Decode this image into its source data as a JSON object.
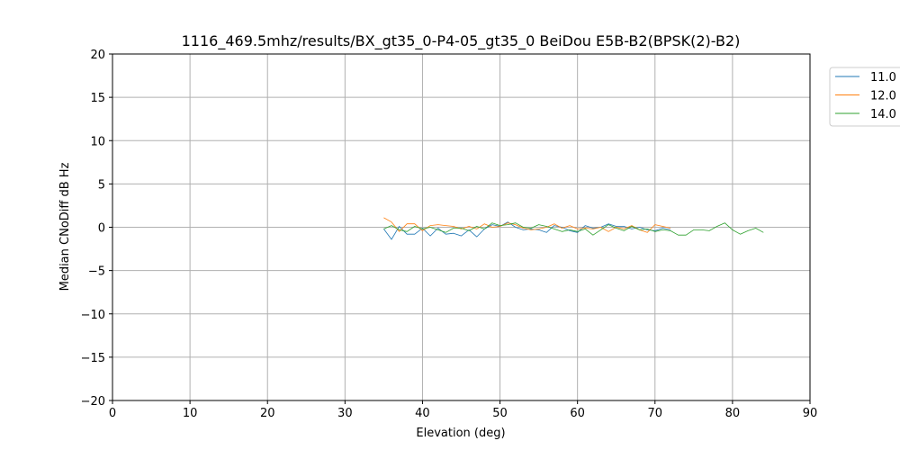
{
  "chart_data": {
    "type": "line",
    "title": "1116_469.5mhz/results/BX_gt35_0-P4-05_gt35_0 BeiDou E5B-B2(BPSK(2)-B2)",
    "xlabel": "Elevation (deg)",
    "ylabel": "Median CNoDiff dB Hz",
    "xlim": [
      0,
      90
    ],
    "ylim": [
      -20,
      20
    ],
    "xticks": [
      0,
      10,
      20,
      30,
      40,
      50,
      60,
      70,
      80,
      90
    ],
    "yticks": [
      -20,
      -15,
      -10,
      -5,
      0,
      5,
      10,
      15,
      20
    ],
    "grid": true,
    "legend_position": "outside-top-right",
    "series": [
      {
        "name": "11.0",
        "color": "#1f77b4",
        "x": [
          35,
          36,
          37,
          38,
          39,
          40,
          41,
          42,
          43,
          44,
          45,
          46,
          47,
          48,
          49,
          50,
          51,
          52,
          53,
          54,
          55,
          56,
          57,
          58,
          59,
          60,
          61,
          62,
          63,
          64,
          65,
          66,
          67,
          68,
          69,
          70,
          71,
          72
        ],
        "y": [
          -0.2,
          -1.4,
          0.1,
          -0.8,
          -0.8,
          -0.1,
          -1.0,
          -0.1,
          -0.8,
          -0.7,
          -1.0,
          -0.3,
          -1.1,
          -0.2,
          0.3,
          0.1,
          0.6,
          0.0,
          -0.3,
          -0.2,
          -0.3,
          -0.6,
          0.2,
          0.0,
          -0.4,
          -0.6,
          0.2,
          -0.1,
          0.0,
          0.4,
          0.1,
          0.1,
          -0.2,
          0.0,
          -0.3,
          -0.4,
          -0.1,
          -0.3
        ]
      },
      {
        "name": "12.0",
        "color": "#ff7f0e",
        "x": [
          35,
          36,
          37,
          38,
          39,
          40,
          41,
          42,
          43,
          44,
          45,
          46,
          47,
          48,
          49,
          50,
          51,
          52,
          53,
          54,
          55,
          56,
          57,
          58,
          59,
          60,
          61,
          62,
          63,
          64,
          65,
          66,
          67,
          68,
          69,
          70,
          71,
          72
        ],
        "y": [
          1.1,
          0.6,
          -0.5,
          0.4,
          0.4,
          -0.4,
          0.2,
          0.3,
          0.2,
          0.1,
          -0.2,
          0.1,
          -0.2,
          0.4,
          0.0,
          0.1,
          0.5,
          0.3,
          -0.1,
          -0.3,
          -0.2,
          0.0,
          0.4,
          -0.1,
          0.2,
          -0.2,
          -0.1,
          -0.2,
          0.0,
          -0.5,
          0.0,
          -0.2,
          0.2,
          -0.3,
          -0.6,
          0.3,
          0.1,
          -0.1
        ]
      },
      {
        "name": "14.0",
        "color": "#2ca02c",
        "x": [
          35,
          36,
          37,
          38,
          39,
          40,
          41,
          42,
          43,
          44,
          45,
          46,
          47,
          48,
          49,
          50,
          51,
          52,
          53,
          54,
          55,
          56,
          57,
          58,
          59,
          60,
          61,
          62,
          63,
          64,
          65,
          66,
          67,
          68,
          69,
          70,
          71,
          72,
          73,
          74,
          75,
          76,
          77,
          78,
          79,
          80,
          81,
          82,
          83,
          84
        ],
        "y": [
          -0.2,
          0.2,
          -0.3,
          -0.5,
          0.1,
          -0.2,
          0.0,
          -0.3,
          -0.6,
          -0.1,
          -0.1,
          -0.4,
          0.1,
          -0.2,
          0.5,
          0.2,
          0.3,
          0.5,
          0.0,
          -0.1,
          0.3,
          0.1,
          -0.2,
          -0.5,
          -0.3,
          -0.5,
          -0.2,
          -0.9,
          -0.3,
          0.3,
          -0.1,
          -0.4,
          0.1,
          -0.3,
          -0.2,
          -0.5,
          -0.3,
          -0.4,
          -0.9,
          -0.9,
          -0.3,
          -0.3,
          -0.4,
          0.1,
          0.5,
          -0.3,
          -0.8,
          -0.4,
          -0.1,
          -0.6
        ]
      }
    ]
  }
}
